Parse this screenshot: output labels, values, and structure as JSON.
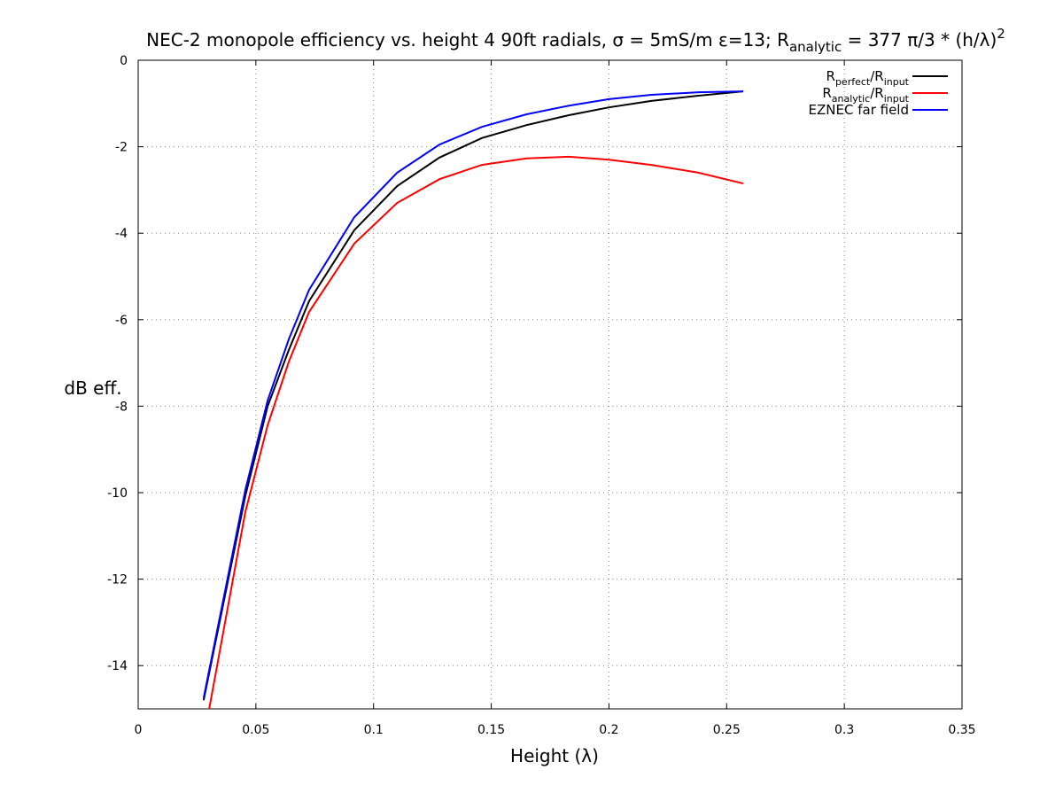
{
  "chart_data": {
    "type": "line",
    "title": "NEC-2 monopole efficiency vs. height 4 90ft radials, σ = 5mS/m ε=13; R",
    "title_sub": "analytic",
    "title_rest": " = 377 π/3 * (h/λ)",
    "title_sup": "2",
    "xlabel": "Height (λ)",
    "ylabel": "dB eff.",
    "xlim": [
      0,
      0.35
    ],
    "ylim": [
      -15,
      0
    ],
    "xticks": [
      0,
      0.05,
      0.1,
      0.15,
      0.2,
      0.25,
      0.3,
      0.35
    ],
    "xtick_labels": [
      "0",
      "0.05",
      "0.1",
      "0.15",
      "0.2",
      "0.25",
      "0.3",
      "0.35"
    ],
    "yticks": [
      0,
      -2,
      -4,
      -6,
      -8,
      -10,
      -12,
      -14
    ],
    "ytick_labels": [
      "0",
      "-2",
      "-4",
      "-6",
      "-8",
      "-10",
      "-12",
      "-14"
    ],
    "grid": true,
    "legend_position": "top-right",
    "x": [
      0.0278,
      0.0455,
      0.055,
      0.064,
      0.0726,
      0.0918,
      0.11,
      0.128,
      0.146,
      0.165,
      0.183,
      0.2,
      0.218,
      0.238,
      0.257
    ],
    "series": [
      {
        "name": "R_perfect/R_input",
        "label_main1": "R",
        "label_sub1": "perfect",
        "label_main2": "/R",
        "label_sub2": "input",
        "color": "#000000",
        "values": [
          -14.8,
          -10.08,
          -8.0,
          -6.7,
          -5.57,
          -3.93,
          -2.91,
          -2.25,
          -1.8,
          -1.5,
          -1.27,
          -1.09,
          -0.94,
          -0.82,
          -0.72
        ]
      },
      {
        "name": "R_analytic/R_input",
        "label_main1": "R",
        "label_sub1": "analytic",
        "label_main2": "/R",
        "label_sub2": "input",
        "color": "#ff0000",
        "values": [
          -15.7,
          -10.45,
          -8.44,
          -6.97,
          -5.82,
          -4.24,
          -3.3,
          -2.75,
          -2.42,
          -2.27,
          -2.23,
          -2.3,
          -2.42,
          -2.6,
          -2.85
        ]
      },
      {
        "name": "EZNEC far field",
        "label_main1": "EZNEC far field",
        "label_sub1": "",
        "label_main2": "",
        "label_sub2": "",
        "color": "#0000ff",
        "values": [
          -14.75,
          -9.94,
          -7.87,
          -6.45,
          -5.31,
          -3.63,
          -2.6,
          -1.95,
          -1.54,
          -1.25,
          -1.05,
          -0.9,
          -0.8,
          -0.74,
          -0.72
        ]
      }
    ]
  }
}
